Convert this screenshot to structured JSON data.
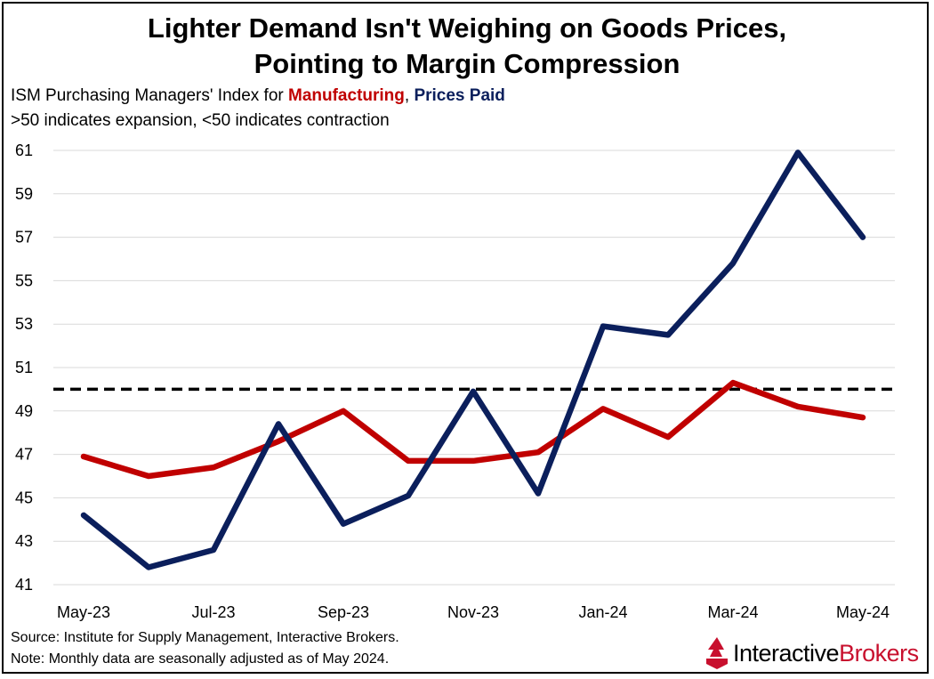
{
  "title_line1": "Lighter Demand Isn't Weighing on Goods Prices,",
  "title_line2": "Pointing to Margin Compression",
  "subtitle_prefix": "ISM Purchasing Managers' Index for ",
  "subtitle_mfg": "Manufacturing",
  "subtitle_sep": ", ",
  "subtitle_pp": "Prices Paid",
  "subtitle2": ">50 indicates expansion, <50 indicates contraction",
  "source": "Source: Institute for Supply Management, Interactive Brokers.",
  "note": "Note: Monthly data are seasonally adjusted as of May 2024.",
  "logo": {
    "part1": "Interactive",
    "part2": "Brokers"
  },
  "colors": {
    "manufacturing": "#c00000",
    "prices_paid": "#0b1f5c",
    "reference": "#000000"
  },
  "chart_data": {
    "type": "line",
    "x": [
      "May-23",
      "Jun-23",
      "Jul-23",
      "Aug-23",
      "Sep-23",
      "Oct-23",
      "Nov-23",
      "Dec-23",
      "Jan-24",
      "Feb-24",
      "Mar-24",
      "Apr-24",
      "May-24"
    ],
    "x_tick_labels": [
      "May-23",
      "Jul-23",
      "Sep-23",
      "Nov-23",
      "Jan-24",
      "Mar-24",
      "May-24"
    ],
    "series": [
      {
        "name": "Manufacturing",
        "color": "#c00000",
        "values": [
          46.9,
          46.0,
          46.4,
          47.6,
          49.0,
          46.7,
          46.7,
          47.1,
          49.1,
          47.8,
          50.3,
          49.2,
          48.7
        ]
      },
      {
        "name": "Prices Paid",
        "color": "#0b1f5c",
        "values": [
          44.2,
          41.8,
          42.6,
          48.4,
          43.8,
          45.1,
          49.9,
          45.2,
          52.9,
          52.5,
          55.8,
          60.9,
          57.0
        ]
      }
    ],
    "reference_line": {
      "value": 50,
      "style": "dashed"
    },
    "ylim": [
      41,
      61
    ],
    "yticks": [
      41,
      43,
      45,
      47,
      49,
      51,
      53,
      55,
      57,
      59,
      61
    ],
    "grid": true
  }
}
